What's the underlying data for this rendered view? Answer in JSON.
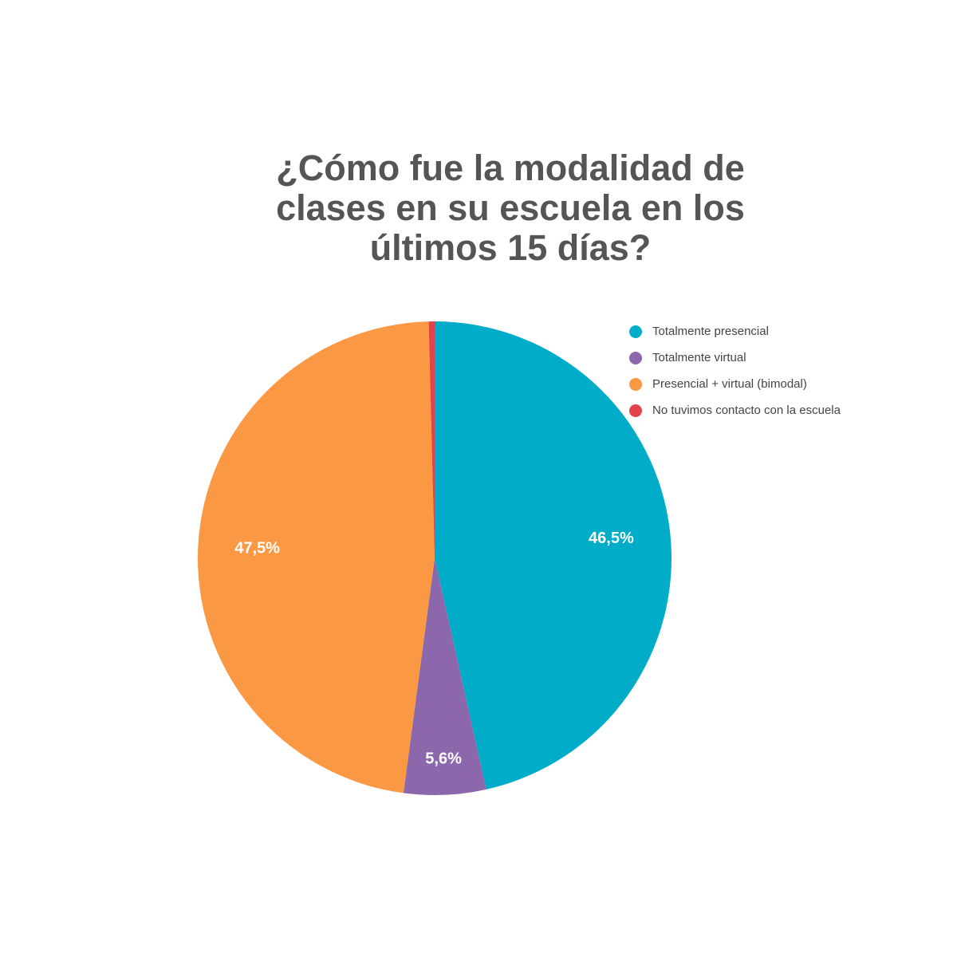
{
  "chart_data": {
    "type": "pie",
    "title": [
      "¿Cómo fue la modalidad de",
      "clases en su escuela en los",
      "últimos 15 días?"
    ],
    "categories": [
      "Totalmente presencial",
      "Totalmente virtual",
      "Presencial + virtual (bimodal)",
      "No tuvimos contacto con la escuela"
    ],
    "values": [
      46.5,
      5.6,
      47.5,
      0.4
    ],
    "value_labels": [
      "46,5%",
      "5,6%",
      "47,5%",
      null
    ],
    "colors": [
      "#00acc8",
      "#8c67ab",
      "#fb9843",
      "#e2424c"
    ],
    "legend": "top-right"
  }
}
